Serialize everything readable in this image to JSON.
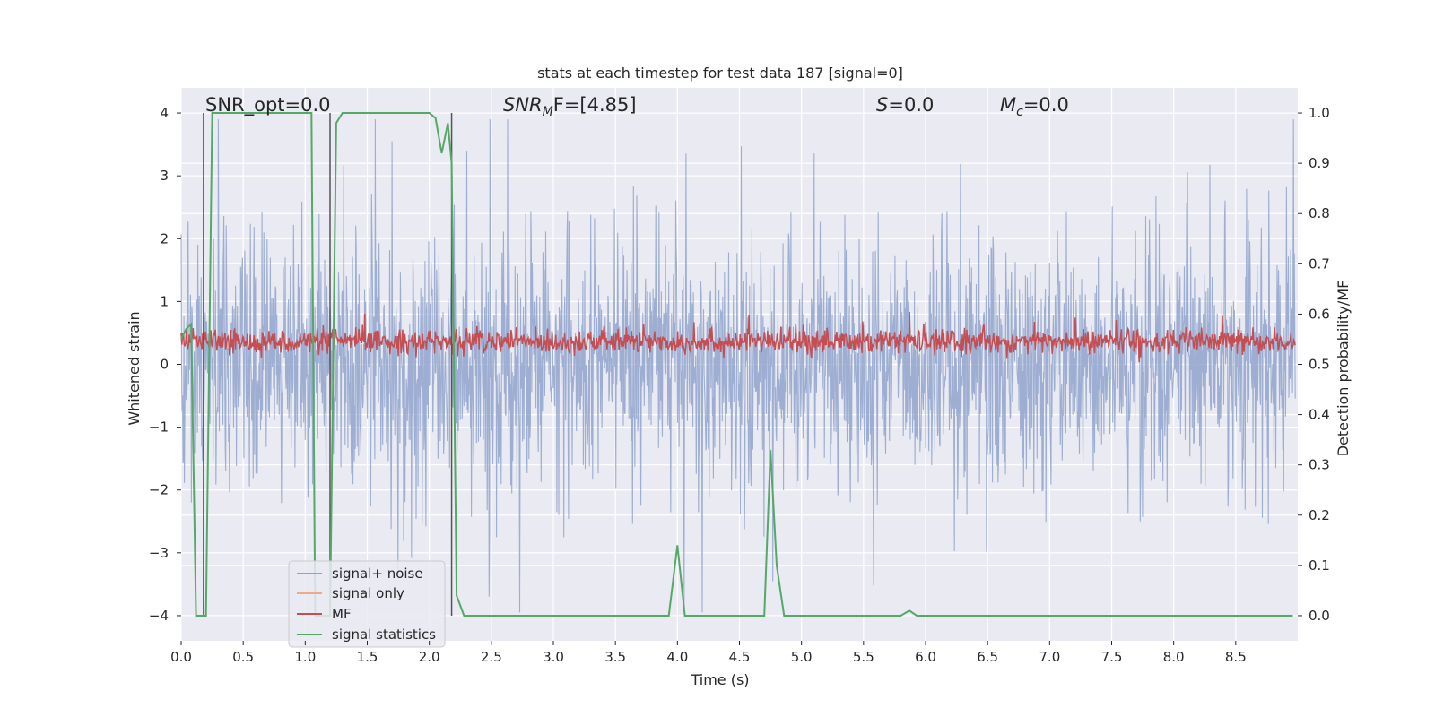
{
  "chart_data": {
    "type": "line",
    "title": "stats at each timestep for test data 187 [signal=0]",
    "xlabel": "Time (s)",
    "ylabel_left": "Whitened strain",
    "ylabel_right": "Detection probability/MF",
    "xlim": [
      0.0,
      9.0
    ],
    "ylim_left": [
      -4.4,
      4.4
    ],
    "ylim_right": [
      -0.05,
      1.05
    ],
    "x_ticks": [
      "0.0",
      "0.5",
      "1.0",
      "1.5",
      "2.0",
      "2.5",
      "3.0",
      "3.5",
      "4.0",
      "4.5",
      "5.0",
      "5.5",
      "6.0",
      "6.5",
      "7.0",
      "7.5",
      "8.0",
      "8.5"
    ],
    "y_ticks_left": [
      "−4",
      "−3",
      "−2",
      "−1",
      "0",
      "1",
      "2",
      "3",
      "4"
    ],
    "y_ticks_right": [
      "0.0",
      "0.1",
      "0.2",
      "0.3",
      "0.4",
      "0.5",
      "0.6",
      "0.7",
      "0.8",
      "0.9",
      "1.0"
    ],
    "grid": true,
    "legend_position": "lower-left",
    "annotations": {
      "snr_opt": "SNR_opt=0.0",
      "snr_mf": "SNR",
      "snr_mf_sub": "M",
      "snr_mf_rest": "F=[4.85]",
      "s": "S",
      "s_rest": "=0.0",
      "mc": "M",
      "mc_sub": "c",
      "mc_rest": "=0.0"
    },
    "series": [
      {
        "name": "signal+ noise",
        "axis": "left",
        "color": "#8fa3cc",
        "description_values": "dense noise approx within [-3.5, 3.9]"
      },
      {
        "name": "signal only",
        "axis": "left",
        "color": "#f2a98a",
        "values": []
      },
      {
        "name": "MF",
        "axis": "right",
        "color": "#c44e52",
        "description_values": "noisy around 0.53-0.56, peaks ~0.6"
      },
      {
        "name": "signal statistics",
        "axis": "right",
        "color": "#55a868",
        "x": [
          0.0,
          0.04,
          0.08,
          0.12,
          0.16,
          0.2,
          0.25,
          0.3,
          0.5,
          0.8,
          1.0,
          1.05,
          1.08,
          1.12,
          1.15,
          1.2,
          1.25,
          1.3,
          1.5,
          1.8,
          2.0,
          2.05,
          2.1,
          2.15,
          2.18,
          2.22,
          2.28,
          2.5,
          3.0,
          3.5,
          3.93,
          4.0,
          4.06,
          4.3,
          4.7,
          4.75,
          4.8,
          4.86,
          5.0,
          5.5,
          5.8,
          5.87,
          5.93,
          6.1,
          6.5,
          7.0,
          7.5,
          8.0,
          8.5,
          8.96
        ],
        "y": [
          0.55,
          0.57,
          0.58,
          0.0,
          0.0,
          0.0,
          1.0,
          1.0,
          1.0,
          1.0,
          1.0,
          1.0,
          0.0,
          0.0,
          0.0,
          0.0,
          0.98,
          1.0,
          1.0,
          1.0,
          1.0,
          0.99,
          0.92,
          0.98,
          0.9,
          0.04,
          0.0,
          0.0,
          0.0,
          0.0,
          0.0,
          0.14,
          0.0,
          0.0,
          0.0,
          0.33,
          0.1,
          0.0,
          0.0,
          0.0,
          0.0,
          0.01,
          0.0,
          0.0,
          0.0,
          0.0,
          0.0,
          0.0,
          0.0,
          0.0
        ]
      }
    ],
    "vertical_lines_x": [
      0.18,
      1.2,
      2.18
    ],
    "vertical_line_color": "#555555"
  }
}
